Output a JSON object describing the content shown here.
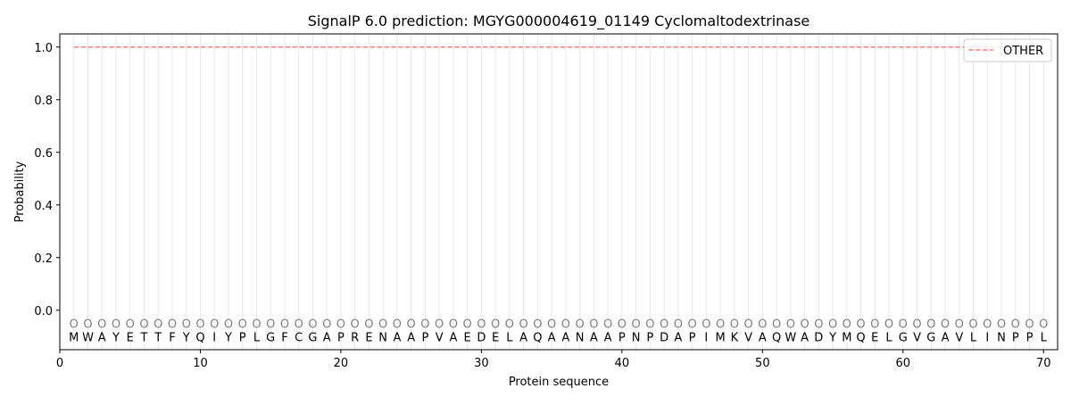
{
  "chart_data": {
    "type": "line",
    "title": "SignalP 6.0 prediction: MGYG000004619_01149 Cyclomaltodextrinase",
    "xlabel": "Protein sequence",
    "ylabel": "Probability",
    "xlim": [
      0,
      71
    ],
    "ylim": [
      -0.15,
      1.05
    ],
    "xticks": [
      0,
      10,
      20,
      30,
      40,
      50,
      60,
      70
    ],
    "yticks": [
      "0.0",
      "0.2",
      "0.4",
      "0.6",
      "0.8",
      "1.0"
    ],
    "grid": "vertical lines at each residue",
    "legend_position": "top-right",
    "sequence": [
      "M",
      "W",
      "A",
      "Y",
      "E",
      "T",
      "T",
      "F",
      "Y",
      "Q",
      "I",
      "Y",
      "P",
      "L",
      "G",
      "F",
      "C",
      "G",
      "A",
      "P",
      "R",
      "E",
      "N",
      "A",
      "A",
      "P",
      "V",
      "A",
      "E",
      "D",
      "E",
      "L",
      "A",
      "Q",
      "A",
      "A",
      "N",
      "A",
      "A",
      "P",
      "N",
      "P",
      "D",
      "A",
      "P",
      "I",
      "M",
      "K",
      "V",
      "A",
      "Q",
      "W",
      "A",
      "D",
      "Y",
      "M",
      "Q",
      "E",
      "L",
      "G",
      "V",
      "G",
      "A",
      "V",
      "L",
      "I",
      "N",
      "P",
      "P",
      "L"
    ],
    "region_label": "O",
    "series": [
      {
        "name": "OTHER",
        "color": "#f08080",
        "style": "dashed",
        "x_range": [
          1,
          70
        ],
        "value": 1.0
      }
    ]
  }
}
